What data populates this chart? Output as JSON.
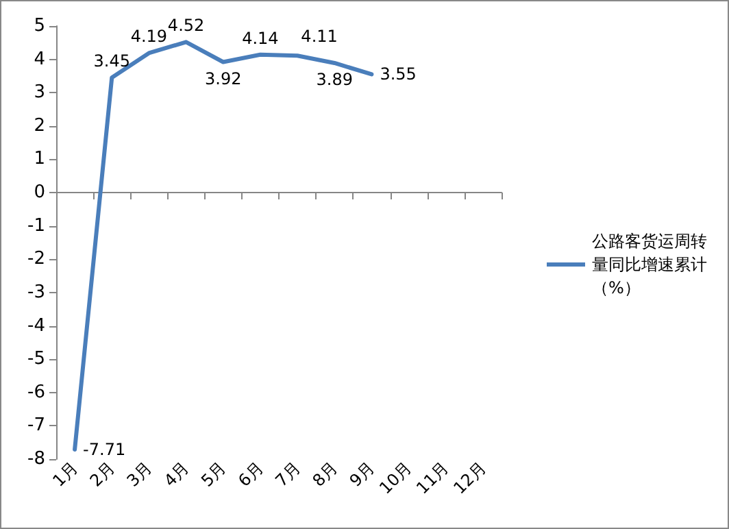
{
  "chart_data": {
    "type": "line",
    "categories": [
      "1月",
      "2月",
      "3月",
      "4月",
      "5月",
      "6月",
      "7月",
      "8月",
      "9月",
      "10月",
      "11月",
      "12月"
    ],
    "series": [
      {
        "name": "公路客货运周转量同比增速累计（%）",
        "color": "#4a7ebb",
        "values": [
          -7.71,
          3.45,
          4.19,
          4.52,
          3.92,
          4.14,
          4.11,
          3.89,
          3.55,
          null,
          null,
          null
        ]
      }
    ],
    "ylim": [
      -8,
      5
    ],
    "yticks": [
      -8,
      -7,
      -6,
      -5,
      -4,
      -3,
      -2,
      -1,
      0,
      1,
      2,
      3,
      4,
      5
    ],
    "data_labels": true,
    "legend": "right",
    "marker": "none",
    "line_style": "solid"
  }
}
